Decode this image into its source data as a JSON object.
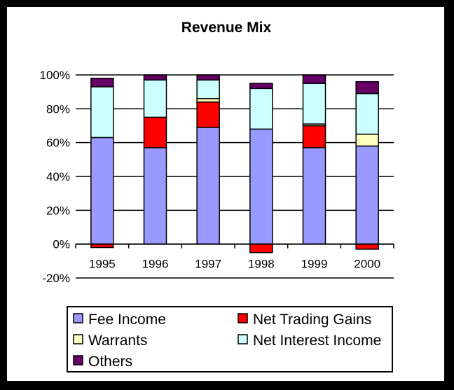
{
  "chart_data": {
    "type": "bar",
    "stacked": true,
    "title": "Revenue Mix",
    "xlabel": "",
    "ylabel": "",
    "categories": [
      "1995",
      "1996",
      "1997",
      "1998",
      "1999",
      "2000"
    ],
    "ylim": [
      -20,
      100
    ],
    "yticks": [
      -20,
      0,
      20,
      40,
      60,
      80,
      100
    ],
    "ytick_labels": [
      "-20%",
      "0%",
      "20%",
      "40%",
      "60%",
      "80%",
      "100%"
    ],
    "grid": true,
    "legend_position": "bottom",
    "series": [
      {
        "name": "Fee Income",
        "color": "#9999ff",
        "values": [
          63,
          57,
          69,
          68,
          57,
          58
        ]
      },
      {
        "name": "Net Trading Gains",
        "color": "#ff0000",
        "values": [
          -2,
          18,
          15,
          -5,
          13,
          -3
        ]
      },
      {
        "name": "Warrants",
        "color": "#ffffc0",
        "values": [
          0,
          0,
          2,
          0,
          1,
          7
        ]
      },
      {
        "name": "Net Interest Income",
        "color": "#ccffff",
        "values": [
          30,
          22,
          11,
          24,
          24,
          24
        ]
      },
      {
        "name": "Others",
        "color": "#660066",
        "values": [
          5,
          3,
          3,
          3,
          5,
          7
        ]
      }
    ]
  }
}
